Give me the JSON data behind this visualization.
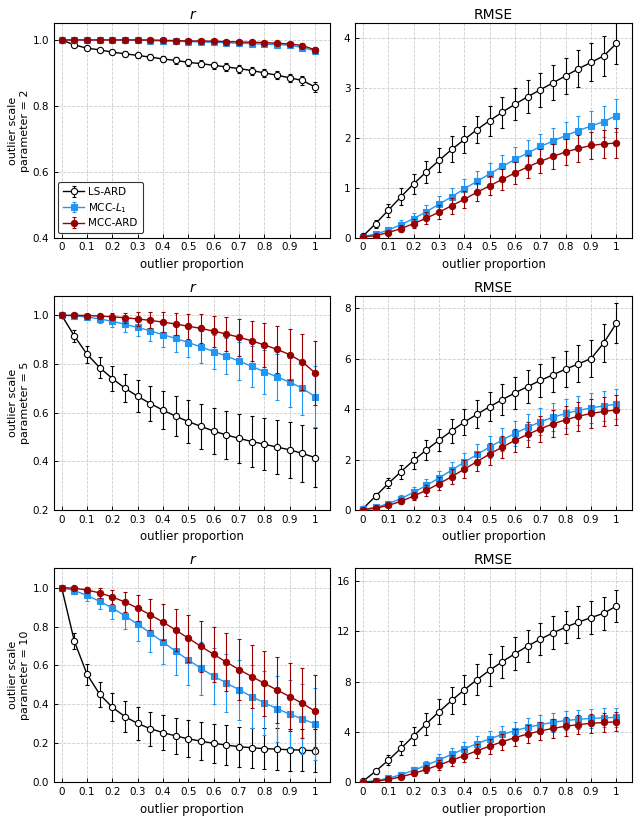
{
  "x": [
    0,
    0.05,
    0.1,
    0.15,
    0.2,
    0.25,
    0.3,
    0.35,
    0.4,
    0.45,
    0.5,
    0.55,
    0.6,
    0.65,
    0.7,
    0.75,
    0.8,
    0.85,
    0.9,
    0.95,
    1.0
  ],
  "colors": {
    "LS-ARD": "#000000",
    "MCC-L1": "#2196F3",
    "MCC-ARD": "#990000"
  },
  "panel_titles_left": [
    "r",
    "r",
    "r"
  ],
  "panel_titles_right": [
    "RMSE",
    "RMSE",
    "RMSE"
  ],
  "ylabels_left": [
    "outlier scale\nparameter = 2",
    "outlier scale\nparameter = 5",
    "outlier scale\nparameter = 10"
  ],
  "xlabel": "outlier proportion",
  "row0_left": {
    "LS_ARD_mean": [
      1.0,
      0.985,
      0.975,
      0.97,
      0.963,
      0.958,
      0.953,
      0.948,
      0.942,
      0.938,
      0.932,
      0.928,
      0.923,
      0.918,
      0.913,
      0.907,
      0.9,
      0.893,
      0.885,
      0.877,
      0.857
    ],
    "LS_ARD_err": [
      0.004,
      0.005,
      0.006,
      0.007,
      0.007,
      0.008,
      0.008,
      0.009,
      0.009,
      0.01,
      0.01,
      0.01,
      0.011,
      0.011,
      0.012,
      0.012,
      0.012,
      0.013,
      0.013,
      0.014,
      0.015
    ],
    "MCC_L1_mean": [
      1.0,
      1.0,
      1.0,
      1.0,
      1.0,
      1.0,
      1.0,
      0.998,
      0.997,
      0.996,
      0.995,
      0.994,
      0.993,
      0.992,
      0.99,
      0.989,
      0.987,
      0.986,
      0.984,
      0.977,
      0.967
    ],
    "MCC_L1_err": [
      0.001,
      0.001,
      0.001,
      0.002,
      0.002,
      0.002,
      0.002,
      0.003,
      0.003,
      0.003,
      0.003,
      0.003,
      0.004,
      0.004,
      0.004,
      0.005,
      0.005,
      0.005,
      0.006,
      0.007,
      0.008
    ],
    "MCC_ARD_mean": [
      1.0,
      1.0,
      1.0,
      1.0,
      1.0,
      1.0,
      1.0,
      1.0,
      0.999,
      0.998,
      0.997,
      0.997,
      0.996,
      0.995,
      0.994,
      0.993,
      0.992,
      0.99,
      0.988,
      0.983,
      0.97
    ],
    "MCC_ARD_err": [
      0.001,
      0.001,
      0.001,
      0.001,
      0.002,
      0.002,
      0.002,
      0.002,
      0.003,
      0.003,
      0.003,
      0.003,
      0.004,
      0.004,
      0.004,
      0.005,
      0.005,
      0.006,
      0.006,
      0.008,
      0.01
    ],
    "ylim": [
      0.4,
      1.05
    ],
    "yticks": [
      0.4,
      0.6,
      0.8,
      1.0
    ]
  },
  "row0_right": {
    "LS_ARD_mean": [
      0.03,
      0.28,
      0.55,
      0.82,
      1.08,
      1.32,
      1.55,
      1.77,
      1.97,
      2.17,
      2.35,
      2.52,
      2.68,
      2.83,
      2.97,
      3.11,
      3.25,
      3.39,
      3.52,
      3.65,
      3.9
    ],
    "LS_ARD_err": [
      0.02,
      0.08,
      0.13,
      0.17,
      0.2,
      0.22,
      0.24,
      0.26,
      0.27,
      0.28,
      0.3,
      0.31,
      0.32,
      0.33,
      0.34,
      0.35,
      0.36,
      0.37,
      0.38,
      0.4,
      0.42
    ],
    "MCC_L1_mean": [
      0.02,
      0.07,
      0.15,
      0.26,
      0.38,
      0.52,
      0.67,
      0.82,
      0.98,
      1.13,
      1.28,
      1.43,
      1.57,
      1.7,
      1.83,
      1.94,
      2.05,
      2.15,
      2.24,
      2.33,
      2.45
    ],
    "MCC_L1_err": [
      0.01,
      0.03,
      0.06,
      0.09,
      0.11,
      0.14,
      0.16,
      0.18,
      0.2,
      0.21,
      0.22,
      0.23,
      0.24,
      0.25,
      0.26,
      0.27,
      0.28,
      0.29,
      0.3,
      0.31,
      0.33
    ],
    "MCC_ARD_mean": [
      0.01,
      0.04,
      0.1,
      0.18,
      0.28,
      0.39,
      0.51,
      0.64,
      0.77,
      0.91,
      1.04,
      1.17,
      1.3,
      1.42,
      1.53,
      1.63,
      1.72,
      1.79,
      1.85,
      1.88,
      1.9
    ],
    "MCC_ARD_err": [
      0.01,
      0.02,
      0.04,
      0.07,
      0.09,
      0.12,
      0.14,
      0.16,
      0.17,
      0.18,
      0.19,
      0.21,
      0.22,
      0.23,
      0.24,
      0.25,
      0.26,
      0.27,
      0.28,
      0.29,
      0.3
    ],
    "ylim": [
      0.0,
      4.3
    ],
    "yticks": [
      0,
      1,
      2,
      3,
      4
    ]
  },
  "row1_left": {
    "LS_ARD_mean": [
      1.0,
      0.915,
      0.84,
      0.785,
      0.74,
      0.7,
      0.667,
      0.637,
      0.61,
      0.585,
      0.563,
      0.543,
      0.524,
      0.508,
      0.494,
      0.481,
      0.47,
      0.458,
      0.447,
      0.432,
      0.415
    ],
    "LS_ARD_err": [
      0.01,
      0.025,
      0.035,
      0.042,
      0.05,
      0.058,
      0.065,
      0.072,
      0.078,
      0.083,
      0.087,
      0.091,
      0.095,
      0.099,
      0.102,
      0.105,
      0.108,
      0.111,
      0.114,
      0.117,
      0.122
    ],
    "MCC_L1_mean": [
      1.0,
      0.998,
      0.993,
      0.985,
      0.975,
      0.963,
      0.95,
      0.936,
      0.92,
      0.905,
      0.888,
      0.87,
      0.851,
      0.832,
      0.812,
      0.79,
      0.768,
      0.747,
      0.725,
      0.7,
      0.665
    ],
    "MCC_L1_err": [
      0.005,
      0.007,
      0.012,
      0.018,
      0.024,
      0.03,
      0.037,
      0.043,
      0.05,
      0.055,
      0.06,
      0.065,
      0.07,
      0.075,
      0.08,
      0.085,
      0.09,
      0.095,
      0.1,
      0.11,
      0.125
    ],
    "MCC_ARD_mean": [
      1.0,
      1.0,
      0.999,
      0.997,
      0.994,
      0.99,
      0.985,
      0.979,
      0.972,
      0.964,
      0.955,
      0.946,
      0.935,
      0.923,
      0.91,
      0.895,
      0.878,
      0.86,
      0.838,
      0.808,
      0.763
    ],
    "MCC_ARD_err": [
      0.003,
      0.004,
      0.006,
      0.01,
      0.015,
      0.02,
      0.027,
      0.033,
      0.04,
      0.046,
      0.052,
      0.058,
      0.064,
      0.07,
      0.076,
      0.083,
      0.09,
      0.097,
      0.104,
      0.115,
      0.13
    ],
    "ylim": [
      0.2,
      1.08
    ],
    "yticks": [
      0.2,
      0.4,
      0.6,
      0.8,
      1.0
    ]
  },
  "row1_right": {
    "LS_ARD_mean": [
      0.05,
      0.55,
      1.05,
      1.52,
      1.97,
      2.38,
      2.77,
      3.14,
      3.49,
      3.8,
      4.1,
      4.38,
      4.65,
      4.9,
      5.14,
      5.37,
      5.59,
      5.8,
      6.01,
      6.63,
      7.42
    ],
    "LS_ARD_err": [
      0.04,
      0.12,
      0.2,
      0.28,
      0.34,
      0.39,
      0.44,
      0.48,
      0.52,
      0.55,
      0.58,
      0.61,
      0.63,
      0.65,
      0.67,
      0.69,
      0.71,
      0.73,
      0.75,
      0.77,
      0.8
    ],
    "MCC_L1_mean": [
      0.02,
      0.1,
      0.25,
      0.45,
      0.7,
      0.97,
      1.27,
      1.58,
      1.9,
      2.2,
      2.5,
      2.78,
      3.04,
      3.28,
      3.5,
      3.68,
      3.83,
      3.95,
      4.05,
      4.13,
      4.2
    ],
    "MCC_L1_err": [
      0.02,
      0.05,
      0.09,
      0.14,
      0.19,
      0.24,
      0.28,
      0.33,
      0.36,
      0.4,
      0.43,
      0.46,
      0.49,
      0.51,
      0.53,
      0.55,
      0.57,
      0.58,
      0.59,
      0.6,
      0.61
    ],
    "MCC_ARD_mean": [
      0.01,
      0.07,
      0.18,
      0.34,
      0.55,
      0.78,
      1.04,
      1.32,
      1.62,
      1.92,
      2.22,
      2.5,
      2.76,
      3.0,
      3.22,
      3.42,
      3.58,
      3.72,
      3.83,
      3.91,
      3.97
    ],
    "MCC_ARD_err": [
      0.01,
      0.04,
      0.08,
      0.12,
      0.17,
      0.22,
      0.26,
      0.31,
      0.35,
      0.38,
      0.42,
      0.45,
      0.47,
      0.5,
      0.52,
      0.54,
      0.55,
      0.57,
      0.58,
      0.59,
      0.6
    ],
    "ylim": [
      0.0,
      8.5
    ],
    "yticks": [
      0,
      2,
      4,
      6,
      8
    ]
  },
  "row2_left": {
    "LS_ARD_mean": [
      1.0,
      0.725,
      0.555,
      0.452,
      0.385,
      0.337,
      0.302,
      0.275,
      0.255,
      0.238,
      0.223,
      0.211,
      0.2,
      0.191,
      0.183,
      0.177,
      0.173,
      0.17,
      0.167,
      0.165,
      0.162
    ],
    "LS_ARD_err": [
      0.01,
      0.04,
      0.055,
      0.065,
      0.072,
      0.078,
      0.083,
      0.087,
      0.09,
      0.093,
      0.095,
      0.097,
      0.099,
      0.101,
      0.103,
      0.104,
      0.106,
      0.107,
      0.108,
      0.109,
      0.11
    ],
    "MCC_L1_mean": [
      1.0,
      0.985,
      0.96,
      0.93,
      0.895,
      0.855,
      0.812,
      0.767,
      0.72,
      0.673,
      0.628,
      0.585,
      0.545,
      0.51,
      0.475,
      0.44,
      0.408,
      0.378,
      0.35,
      0.325,
      0.3
    ],
    "MCC_L1_err": [
      0.005,
      0.015,
      0.027,
      0.04,
      0.055,
      0.07,
      0.085,
      0.1,
      0.112,
      0.122,
      0.13,
      0.138,
      0.144,
      0.15,
      0.155,
      0.16,
      0.165,
      0.17,
      0.175,
      0.18,
      0.185
    ],
    "MCC_ARD_mean": [
      1.0,
      0.997,
      0.988,
      0.973,
      0.952,
      0.926,
      0.895,
      0.86,
      0.823,
      0.782,
      0.74,
      0.698,
      0.657,
      0.617,
      0.579,
      0.543,
      0.508,
      0.474,
      0.44,
      0.405,
      0.365
    ],
    "MCC_ARD_err": [
      0.003,
      0.007,
      0.015,
      0.025,
      0.037,
      0.051,
      0.065,
      0.08,
      0.094,
      0.108,
      0.12,
      0.13,
      0.14,
      0.148,
      0.155,
      0.16,
      0.165,
      0.17,
      0.175,
      0.18,
      0.185
    ],
    "ylim": [
      0.0,
      1.1
    ],
    "yticks": [
      0.0,
      0.2,
      0.4,
      0.6,
      0.8,
      1.0
    ]
  },
  "row2_right": {
    "LS_ARD_mean": [
      0.08,
      0.88,
      1.75,
      2.7,
      3.68,
      4.65,
      5.6,
      6.5,
      7.35,
      8.15,
      8.9,
      9.58,
      10.22,
      10.82,
      11.37,
      11.87,
      12.32,
      12.72,
      13.08,
      13.42,
      14.0
    ],
    "LS_ARD_err": [
      0.06,
      0.2,
      0.38,
      0.56,
      0.73,
      0.88,
      1.0,
      1.1,
      1.17,
      1.22,
      1.25,
      1.27,
      1.28,
      1.29,
      1.3,
      1.3,
      1.3,
      1.3,
      1.3,
      1.3,
      1.3
    ],
    "MCC_L1_mean": [
      0.02,
      0.12,
      0.32,
      0.6,
      0.95,
      1.35,
      1.78,
      2.22,
      2.65,
      3.07,
      3.45,
      3.8,
      4.1,
      4.36,
      4.58,
      4.76,
      4.9,
      5.0,
      5.07,
      5.12,
      5.15
    ],
    "MCC_L1_err": [
      0.02,
      0.06,
      0.12,
      0.2,
      0.28,
      0.36,
      0.43,
      0.5,
      0.55,
      0.6,
      0.64,
      0.67,
      0.7,
      0.72,
      0.73,
      0.74,
      0.75,
      0.75,
      0.75,
      0.75,
      0.75
    ],
    "MCC_ARD_mean": [
      0.01,
      0.08,
      0.22,
      0.43,
      0.7,
      1.02,
      1.37,
      1.74,
      2.12,
      2.5,
      2.87,
      3.22,
      3.55,
      3.83,
      4.08,
      4.28,
      4.45,
      4.58,
      4.68,
      4.75,
      4.8
    ],
    "MCC_ARD_err": [
      0.01,
      0.05,
      0.1,
      0.17,
      0.24,
      0.32,
      0.39,
      0.46,
      0.51,
      0.56,
      0.6,
      0.63,
      0.66,
      0.69,
      0.71,
      0.73,
      0.74,
      0.75,
      0.75,
      0.75,
      0.75
    ],
    "ylim": [
      0.0,
      17.0
    ],
    "yticks": [
      0,
      4,
      8,
      12,
      16
    ]
  }
}
